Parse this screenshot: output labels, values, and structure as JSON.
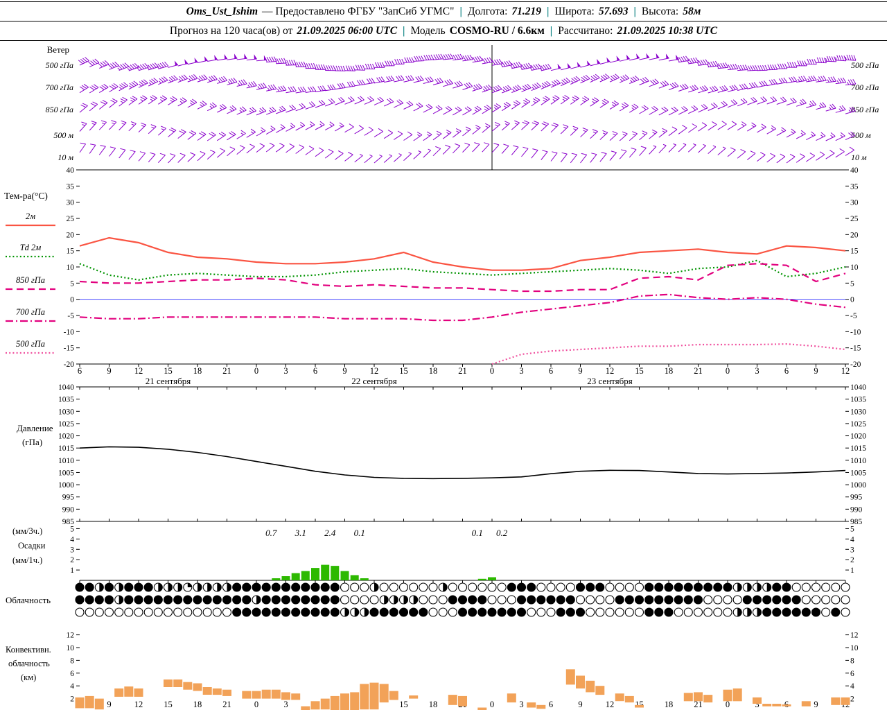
{
  "header": {
    "sep": "|",
    "row1": {
      "station": "Oms_Ust_Ishim",
      "provider": "— Предоставлено ФГБУ \"ЗапСиб УГМС\"",
      "lon_label": "Долгота:",
      "lon_value": "71.219",
      "lat_label": "Широта:",
      "lat_value": "57.693",
      "alt_label": "Высота:",
      "alt_value": "58м"
    },
    "row2": {
      "forecast_label": "Прогноз на 120 часа(ов) от",
      "forecast_time": "21.09.2025 06:00 UTC",
      "model_label": "Модель",
      "model_value": "COSMO-RU / 6.6км",
      "calc_label": "Рассчитано:",
      "calc_time": "21.09.2025 10:38 UTC"
    }
  },
  "axis": {
    "t_start": 6,
    "t_end": 84,
    "step": 3,
    "hour_labels": [
      "6",
      "9",
      "12",
      "15",
      "18",
      "21",
      "0",
      "3",
      "6",
      "9",
      "12",
      "15",
      "18",
      "21",
      "0",
      "3",
      "6",
      "9",
      "12",
      "15",
      "18",
      "21",
      "0",
      "3",
      "6",
      "9",
      "12"
    ],
    "date_labels": [
      {
        "t": 15,
        "label": "21 сентября"
      },
      {
        "t": 36,
        "label": "22 сентября"
      },
      {
        "t": 60,
        "label": "23 сентября"
      }
    ],
    "day_boundaries": [
      48
    ]
  },
  "chart_data": [
    {
      "type": "wind-barbs",
      "label": "Ветер",
      "color": "#8a00cc",
      "levels": [
        "500 гПа",
        "700 гПа",
        "850 гПа",
        "500 м",
        "10 м"
      ],
      "series": [
        {
          "level": "500 гПа",
          "dir": [
            245,
            248,
            252,
            255,
            258,
            262,
            265,
            268,
            270,
            272,
            270,
            268,
            265,
            262,
            260,
            258,
            256,
            255,
            256,
            258,
            260,
            262,
            265,
            268,
            270,
            272,
            274
          ],
          "spd": [
            40,
            42,
            45,
            48,
            50,
            50,
            48,
            45,
            45,
            42,
            40,
            38,
            38,
            40,
            42,
            45,
            48,
            50,
            52,
            50,
            48,
            45,
            42,
            40,
            40,
            42,
            45
          ]
        },
        {
          "level": "700 гПа",
          "dir": [
            238,
            240,
            244,
            248,
            252,
            255,
            258,
            260,
            262,
            262,
            260,
            258,
            255,
            252,
            250,
            248,
            246,
            245,
            246,
            248,
            250,
            253,
            256,
            258,
            260,
            262,
            264
          ],
          "spd": [
            30,
            32,
            34,
            35,
            36,
            35,
            34,
            32,
            30,
            30,
            28,
            28,
            30,
            32,
            34,
            35,
            36,
            35,
            34,
            32,
            30,
            30,
            28,
            30,
            32,
            34,
            35
          ]
        },
        {
          "level": "850 гПа",
          "dir": [
            230,
            232,
            235,
            238,
            242,
            245,
            248,
            250,
            250,
            248,
            246,
            244,
            242,
            240,
            238,
            236,
            235,
            236,
            238,
            240,
            243,
            246,
            248,
            250,
            252,
            254,
            255
          ],
          "spd": [
            20,
            22,
            24,
            25,
            26,
            25,
            24,
            22,
            20,
            20,
            18,
            18,
            20,
            22,
            24,
            25,
            26,
            25,
            24,
            22,
            20,
            18,
            18,
            20,
            22,
            24,
            25
          ]
        },
        {
          "level": "500 м",
          "dir": [
            222,
            224,
            226,
            230,
            234,
            238,
            240,
            242,
            242,
            240,
            238,
            236,
            234,
            232,
            230,
            228,
            226,
            226,
            228,
            230,
            233,
            236,
            238,
            240,
            242,
            244,
            245
          ],
          "spd": [
            14,
            15,
            16,
            18,
            18,
            18,
            16,
            15,
            14,
            12,
            12,
            12,
            14,
            15,
            16,
            18,
            18,
            16,
            15,
            14,
            12,
            12,
            12,
            14,
            15,
            16,
            18
          ]
        },
        {
          "level": "10 м",
          "dir": [
            215,
            218,
            220,
            224,
            228,
            230,
            232,
            234,
            234,
            232,
            230,
            228,
            226,
            224,
            222,
            220,
            218,
            218,
            220,
            222,
            225,
            228,
            230,
            232,
            234,
            236,
            238
          ],
          "spd": [
            8,
            10,
            10,
            12,
            12,
            12,
            10,
            10,
            8,
            8,
            6,
            6,
            8,
            10,
            10,
            12,
            12,
            10,
            10,
            8,
            6,
            6,
            8,
            8,
            10,
            10,
            12
          ]
        }
      ]
    },
    {
      "type": "line",
      "title": "Тем-ра(°C)",
      "ylim": [
        -20,
        40
      ],
      "yticks": [
        40,
        35,
        30,
        25,
        20,
        15,
        10,
        5,
        0,
        -5,
        -10,
        -15,
        -20
      ],
      "zero_line_color": "#4848ff",
      "series": [
        {
          "name": "2м",
          "color": "#fa5442",
          "style": "solid",
          "values": [
            16.5,
            19,
            17.5,
            14.5,
            13,
            12.5,
            11.5,
            11,
            11,
            11.5,
            12.5,
            14.5,
            11.5,
            10,
            9,
            9,
            9.5,
            12,
            13,
            14.5,
            15,
            15.5,
            14.5,
            14,
            16.5,
            16,
            15
          ]
        },
        {
          "name": "Td 2м",
          "color": "#009300",
          "style": "dotted",
          "values": [
            11,
            7.5,
            6,
            7.5,
            8,
            7.5,
            7,
            7,
            7.5,
            8.5,
            9,
            9.5,
            8.5,
            8,
            7.5,
            8,
            8.5,
            9,
            9.5,
            9,
            8,
            9.5,
            10,
            12,
            7,
            8,
            10
          ]
        },
        {
          "name": "850 гПа",
          "color": "#e2007e",
          "style": "dashed",
          "values": [
            5.5,
            5,
            5,
            5.5,
            6,
            6,
            6.5,
            6,
            4.5,
            4,
            4.5,
            4,
            3.5,
            3.5,
            3,
            2.5,
            2.5,
            3,
            3,
            6.5,
            7,
            6,
            10.5,
            11,
            10.5,
            5.5,
            8
          ]
        },
        {
          "name": "700 гПа",
          "color": "#e2007e",
          "style": "dashdot",
          "values": [
            -5.5,
            -6,
            -6,
            -5.5,
            -5.5,
            -5.5,
            -5.5,
            -5.5,
            -5.5,
            -6,
            -6,
            -6,
            -6.5,
            -6.5,
            -5.5,
            -4,
            -3,
            -2,
            -1,
            1,
            1.5,
            0.5,
            0,
            0.5,
            0,
            -1.5,
            -2.5
          ]
        },
        {
          "name": "500 гПа",
          "color": "#f0509e",
          "style": "dotted",
          "values": [
            null,
            null,
            null,
            null,
            null,
            null,
            null,
            null,
            null,
            null,
            null,
            null,
            null,
            null,
            -20,
            -17,
            -16,
            -15.5,
            -15,
            -14.5,
            -14.5,
            -14,
            -14,
            -14,
            -13.8,
            -14.5,
            -15.5
          ]
        }
      ]
    },
    {
      "type": "line",
      "title": "Давление (гПа)",
      "label_lines": [
        "Давление",
        "(гПа)"
      ],
      "ylim": [
        985,
        1040
      ],
      "yticks": [
        1040,
        1035,
        1030,
        1025,
        1020,
        1015,
        1010,
        1005,
        1000,
        995,
        990,
        985
      ],
      "color": "#000000",
      "values": [
        1015,
        1015.5,
        1015.3,
        1014.5,
        1013.2,
        1011.5,
        1009.5,
        1007.5,
        1005.5,
        1004,
        1003,
        1002.6,
        1002.5,
        1002.6,
        1002.8,
        1003.2,
        1004.5,
        1005.5,
        1005.9,
        1005.8,
        1005.2,
        1004.6,
        1004.4,
        1004.6,
        1004.8,
        1005.2,
        1005.8
      ]
    },
    {
      "type": "bar",
      "title": "Осадки",
      "label_lines": [
        "(мм/3ч.)",
        "Осадки",
        "(мм/1ч.)"
      ],
      "ylim": [
        0,
        5.5
      ],
      "yticks": [
        5,
        4,
        3,
        2,
        1
      ],
      "color": "#2db900",
      "bars": [
        {
          "t": 26,
          "v": 0.2
        },
        {
          "t": 27,
          "v": 0.4
        },
        {
          "t": 28,
          "v": 0.7
        },
        {
          "t": 29,
          "v": 0.9
        },
        {
          "t": 30,
          "v": 1.2
        },
        {
          "t": 31,
          "v": 1.5
        },
        {
          "t": 32,
          "v": 1.4
        },
        {
          "t": 33,
          "v": 0.9
        },
        {
          "t": 34,
          "v": 0.5
        },
        {
          "t": 35,
          "v": 0.2
        },
        {
          "t": 47,
          "v": 0.15
        },
        {
          "t": 48,
          "v": 0.3
        }
      ],
      "annotations": [
        {
          "t": 25.5,
          "text": "0.7"
        },
        {
          "t": 28.5,
          "text": "3.1"
        },
        {
          "t": 31.5,
          "text": "2.4"
        },
        {
          "t": 34.5,
          "text": "0.1"
        },
        {
          "t": 46.5,
          "text": "0.1"
        },
        {
          "t": 49,
          "text": "0.2"
        }
      ]
    },
    {
      "type": "cloud-cover",
      "label": "Облачность",
      "max_oktas": 8,
      "rows": [
        [
          "8848488844",
          "4244448888",
          "8888888000",
          "4000000400",
          "0000888000",
          "0888000088",
          "8888888444",
          "488000000"
        ],
        [
          "8888488888",
          "8888888848",
          "8888888000",
          "0444400088",
          "8800088888",
          "8000088888",
          "8888000088",
          "888800000"
        ],
        [
          "0000000000",
          "0000008888",
          "8888888444",
          "8888880008",
          "8888880008",
          "8800000088",
          "8000000444",
          "888888080"
        ]
      ]
    },
    {
      "type": "floating-bar",
      "label_lines": [
        "Конвективн.",
        "облачность",
        "(км)"
      ],
      "ylim": [
        0,
        13
      ],
      "yticks": [
        12,
        10,
        8,
        6,
        4,
        2
      ],
      "color": "#f2a258",
      "bars": [
        {
          "t": 6,
          "base": 0.5,
          "top": 2.2
        },
        {
          "t": 7,
          "base": 0.5,
          "top": 2.4
        },
        {
          "t": 8,
          "base": 0.3,
          "top": 2.0
        },
        {
          "t": 10,
          "base": 2.3,
          "top": 3.6
        },
        {
          "t": 11,
          "base": 2.3,
          "top": 3.9
        },
        {
          "t": 12,
          "base": 2.3,
          "top": 3.6
        },
        {
          "t": 15,
          "base": 3.8,
          "top": 5.0
        },
        {
          "t": 16,
          "base": 3.8,
          "top": 5.0
        },
        {
          "t": 17,
          "base": 3.4,
          "top": 4.6
        },
        {
          "t": 18,
          "base": 3.2,
          "top": 4.4
        },
        {
          "t": 19,
          "base": 2.6,
          "top": 3.8
        },
        {
          "t": 20,
          "base": 2.6,
          "top": 3.6
        },
        {
          "t": 21,
          "base": 2.4,
          "top": 3.4
        },
        {
          "t": 23,
          "base": 2.0,
          "top": 3.2
        },
        {
          "t": 24,
          "base": 2.0,
          "top": 3.2
        },
        {
          "t": 25,
          "base": 2.0,
          "top": 3.4
        },
        {
          "t": 26,
          "base": 2.0,
          "top": 3.4
        },
        {
          "t": 27,
          "base": 1.8,
          "top": 3.0
        },
        {
          "t": 28,
          "base": 1.8,
          "top": 2.8
        },
        {
          "t": 29,
          "base": 0.2,
          "top": 0.8
        },
        {
          "t": 30,
          "base": 0.3,
          "top": 1.6
        },
        {
          "t": 31,
          "base": 0.3,
          "top": 2.0
        },
        {
          "t": 32,
          "base": 0.2,
          "top": 2.4
        },
        {
          "t": 33,
          "base": 0.2,
          "top": 2.8
        },
        {
          "t": 34,
          "base": 0.2,
          "top": 3.0
        },
        {
          "t": 35,
          "base": 0.3,
          "top": 4.3
        },
        {
          "t": 36,
          "base": 0.3,
          "top": 4.5
        },
        {
          "t": 37,
          "base": 1.4,
          "top": 4.3
        },
        {
          "t": 38,
          "base": 1.8,
          "top": 3.2
        },
        {
          "t": 40,
          "base": 2.0,
          "top": 2.5
        },
        {
          "t": 44,
          "base": 1.0,
          "top": 2.6
        },
        {
          "t": 45,
          "base": 0.8,
          "top": 2.4
        },
        {
          "t": 47,
          "base": 0.1,
          "top": 0.6
        },
        {
          "t": 50,
          "base": 1.4,
          "top": 2.8
        },
        {
          "t": 52,
          "base": 0.6,
          "top": 1.4
        },
        {
          "t": 53,
          "base": 0.4,
          "top": 1.0
        },
        {
          "t": 56,
          "base": 4.2,
          "top": 6.6
        },
        {
          "t": 57,
          "base": 3.6,
          "top": 5.6
        },
        {
          "t": 58,
          "base": 3.0,
          "top": 4.8
        },
        {
          "t": 59,
          "base": 2.6,
          "top": 4.0
        },
        {
          "t": 61,
          "base": 1.6,
          "top": 2.8
        },
        {
          "t": 62,
          "base": 1.4,
          "top": 2.4
        },
        {
          "t": 63,
          "base": 0.6,
          "top": 1.0
        },
        {
          "t": 68,
          "base": 1.6,
          "top": 2.9
        },
        {
          "t": 69,
          "base": 1.6,
          "top": 3.0
        },
        {
          "t": 70,
          "base": 1.4,
          "top": 2.6
        },
        {
          "t": 72,
          "base": 1.6,
          "top": 3.4
        },
        {
          "t": 73,
          "base": 1.6,
          "top": 3.6
        },
        {
          "t": 75,
          "base": 1.2,
          "top": 2.2
        },
        {
          "t": 76,
          "base": 0.8,
          "top": 1.2
        },
        {
          "t": 77,
          "base": 0.8,
          "top": 1.2
        },
        {
          "t": 78,
          "base": 0.8,
          "top": 1.1
        },
        {
          "t": 80,
          "base": 0.8,
          "top": 1.6
        },
        {
          "t": 83,
          "base": 1.0,
          "top": 2.2
        },
        {
          "t": 84,
          "base": 1.0,
          "top": 2.2
        }
      ]
    }
  ]
}
